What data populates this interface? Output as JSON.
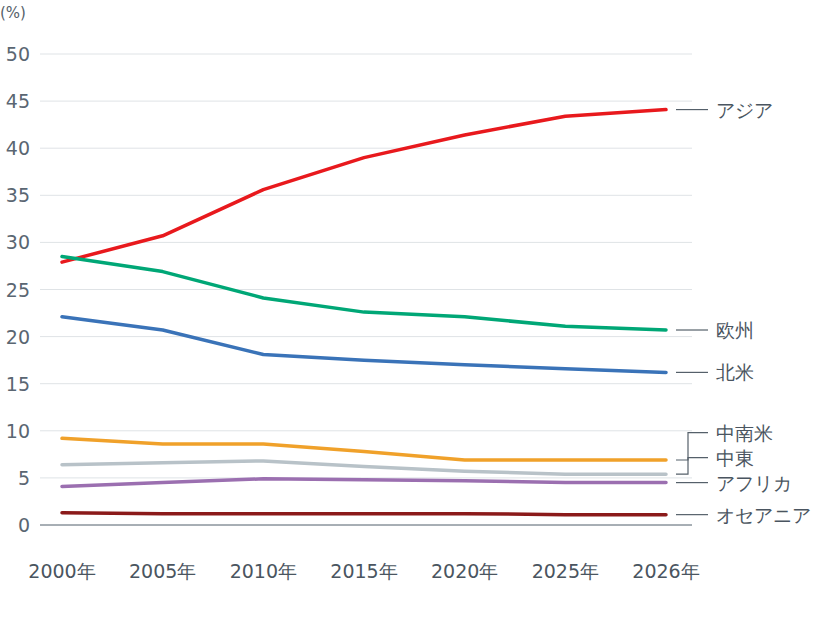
{
  "chart_data": {
    "type": "line",
    "y_label": "(%)",
    "categories": [
      "2000年",
      "2005年",
      "2010年",
      "2015年",
      "2020年",
      "2025年",
      "2026年"
    ],
    "series": [
      {
        "name": "アジア",
        "color": "#e8191d",
        "values": [
          27.9,
          30.7,
          35.6,
          39.0,
          41.4,
          43.4,
          44.1
        ]
      },
      {
        "name": "欧州",
        "color": "#00a776",
        "values": [
          28.5,
          26.9,
          24.1,
          22.6,
          22.1,
          21.1,
          20.7
        ]
      },
      {
        "name": "北米",
        "color": "#3a73b8",
        "values": [
          22.1,
          20.7,
          18.1,
          17.5,
          17.0,
          16.6,
          16.2
        ]
      },
      {
        "name": "中南米",
        "color": "#f0a12a",
        "values": [
          9.2,
          8.6,
          8.6,
          7.8,
          6.9,
          6.9,
          6.9
        ]
      },
      {
        "name": "中東",
        "color": "#b8c2c8",
        "values": [
          6.4,
          6.6,
          6.8,
          6.2,
          5.7,
          5.4,
          5.4
        ]
      },
      {
        "name": "アフリカ",
        "color": "#9b6fb0",
        "values": [
          4.1,
          4.5,
          4.9,
          4.8,
          4.7,
          4.5,
          4.5
        ]
      },
      {
        "name": "オセアニア",
        "color": "#8b1a1a",
        "values": [
          1.3,
          1.2,
          1.2,
          1.2,
          1.2,
          1.1,
          1.1
        ]
      }
    ],
    "ylim": [
      0,
      50
    ],
    "yticks": [
      0,
      5,
      10,
      15,
      20,
      25,
      30,
      35,
      40,
      45,
      50
    ],
    "grid": true,
    "legend": "right"
  }
}
